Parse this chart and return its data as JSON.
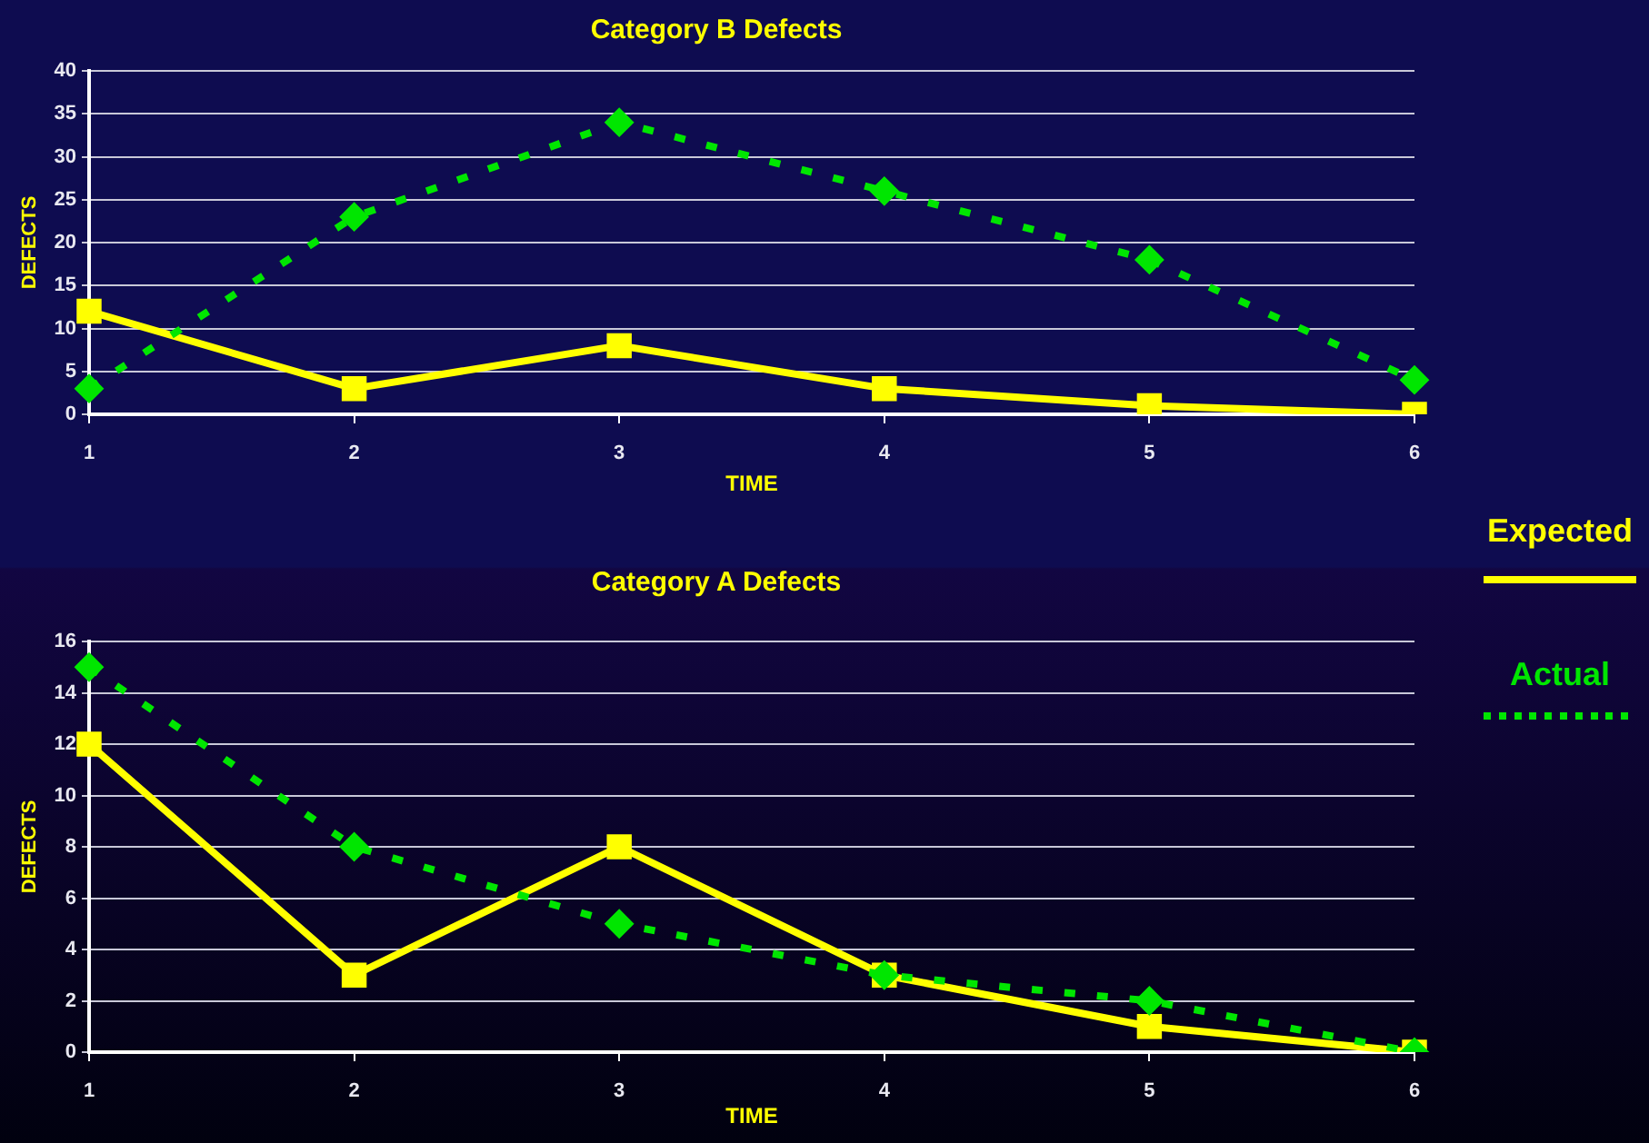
{
  "chart_data": [
    {
      "type": "line",
      "title": "Category B Defects",
      "xlabel": "TIME",
      "ylabel": "DEFECTS",
      "categories": [
        "1",
        "2",
        "3",
        "4",
        "5",
        "6"
      ],
      "series": [
        {
          "color": "#ffff00",
          "marker": "square",
          "line_style": "solid",
          "values": [
            12,
            3,
            8,
            3,
            1,
            0
          ]
        },
        {
          "color": "#00e600",
          "marker": "diamond",
          "line_style": "dotted",
          "values": [
            3,
            23,
            34,
            26,
            18,
            4
          ]
        }
      ],
      "ylim": [
        0,
        40
      ],
      "yticks": [
        0,
        5,
        10,
        15,
        20,
        25,
        30,
        35,
        40
      ],
      "grid": "y",
      "legend": false
    },
    {
      "type": "line",
      "title": "Category A Defects",
      "xlabel": "TIME",
      "ylabel": "DEFECTS",
      "categories": [
        "1",
        "2",
        "3",
        "4",
        "5",
        "6"
      ],
      "series": [
        {
          "name": "Expected",
          "color": "#ffff00",
          "marker": "square",
          "line_style": "solid",
          "values": [
            12,
            3,
            8,
            3,
            1,
            0
          ]
        },
        {
          "name": "Actual",
          "color": "#00e600",
          "marker": "diamond",
          "line_style": "dotted",
          "values": [
            15,
            8,
            5,
            3,
            2,
            0
          ]
        }
      ],
      "ylim": [
        0,
        16
      ],
      "yticks": [
        0,
        2,
        4,
        6,
        8,
        10,
        12,
        14,
        16
      ],
      "grid": "y",
      "legend": "right"
    }
  ]
}
